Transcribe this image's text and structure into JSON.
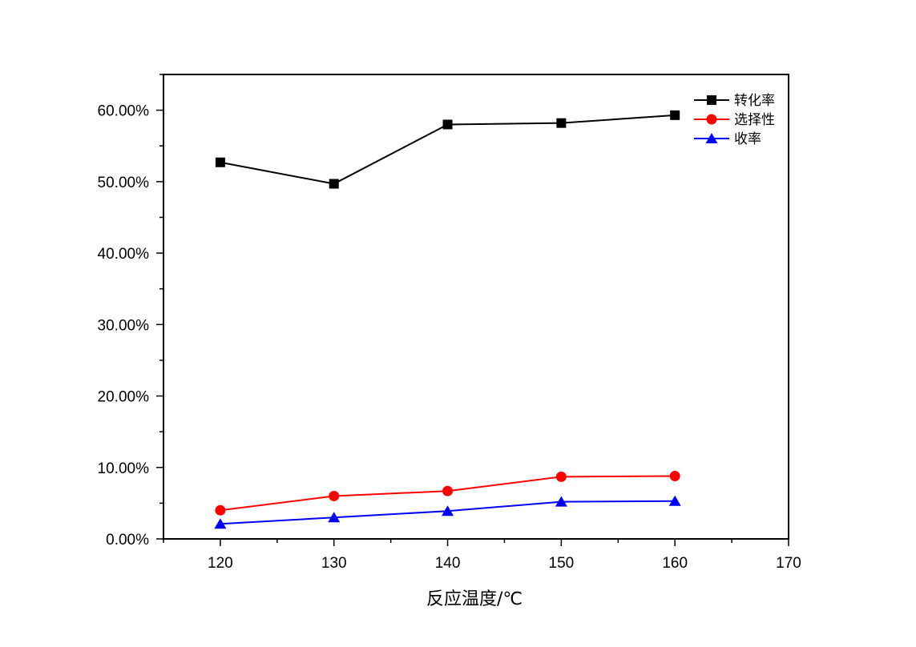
{
  "chart_data": {
    "type": "line",
    "title": "",
    "xlabel": "反应温度/℃",
    "ylabel": "",
    "x": [
      120,
      130,
      140,
      150,
      160
    ],
    "xlim": [
      115,
      170
    ],
    "ylim": [
      0,
      65
    ],
    "x_ticks": [
      "120",
      "130",
      "140",
      "150",
      "160",
      "170"
    ],
    "y_ticks": [
      "0.00%",
      "10.00%",
      "20.00%",
      "30.00%",
      "40.00%",
      "50.00%",
      "60.00%"
    ],
    "grid": false,
    "legend_position": "top-right",
    "series": [
      {
        "name": "转化率",
        "values": [
          52.7,
          49.7,
          58.0,
          58.2,
          59.3
        ],
        "color": "#000000",
        "marker": "square"
      },
      {
        "name": "选择性",
        "values": [
          4.0,
          6.0,
          6.7,
          8.7,
          8.8
        ],
        "color": "#ff0000",
        "marker": "circle"
      },
      {
        "name": "收率",
        "values": [
          2.1,
          3.0,
          3.9,
          5.2,
          5.3
        ],
        "color": "#0000ff",
        "marker": "triangle"
      }
    ]
  }
}
